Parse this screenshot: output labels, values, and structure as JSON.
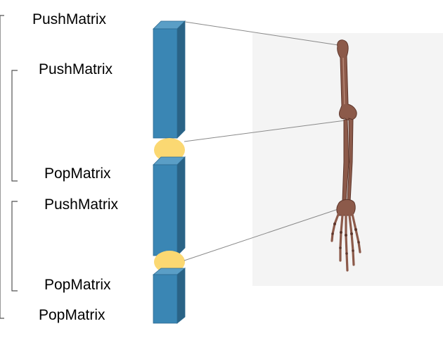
{
  "labels": {
    "push_outer": "PushMatrix",
    "push_upper": "PushMatrix",
    "pop_upper": "PopMatrix",
    "push_lower": "PushMatrix",
    "pop_lower": "PopMatrix",
    "pop_outer": "PopMatrix"
  },
  "colors": {
    "segment_front": "#3a86b4",
    "segment_side": "#2a6386",
    "segment_top": "#5a9ec6",
    "segment_edge": "#2d6a90",
    "joint": "#fbd872",
    "bracket": "#555555",
    "connector": "#8a8a8a",
    "panel": "#f4f4f4",
    "bone": "#8c5a4a",
    "bone_shadow": "#5e362b",
    "bone_highlight": "#b98a78"
  }
}
